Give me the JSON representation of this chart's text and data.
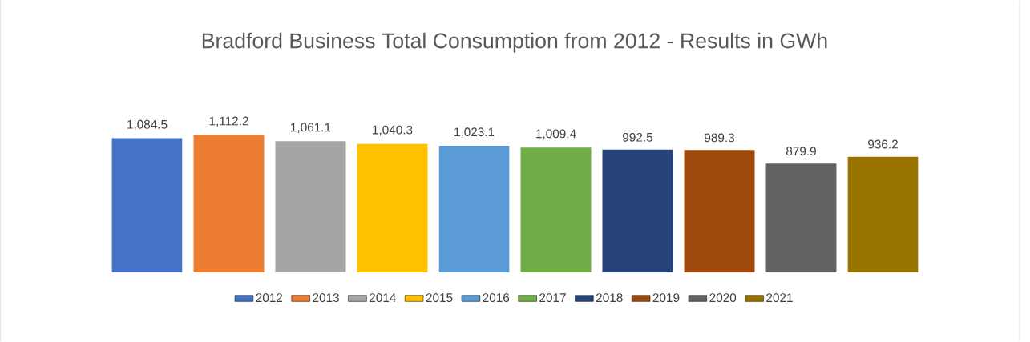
{
  "chart_data": {
    "type": "bar",
    "title": "Bradford Business Total Consumption from 2012 - Results in GWh",
    "categories": [
      null
    ],
    "legend": "bottom",
    "series": [
      {
        "name": "2012",
        "color": "#4472c4",
        "values": [
          1084.5
        ],
        "value_labels": [
          "1,084.5"
        ]
      },
      {
        "name": "2013",
        "color": "#ed7d31",
        "values": [
          1112.2
        ],
        "value_labels": [
          "1,112.2"
        ]
      },
      {
        "name": "2014",
        "color": "#a5a5a5",
        "values": [
          1061.1
        ],
        "value_labels": [
          "1,061.1"
        ]
      },
      {
        "name": "2015",
        "color": "#ffc000",
        "values": [
          1040.3
        ],
        "value_labels": [
          "1,040.3"
        ]
      },
      {
        "name": "2016",
        "color": "#5b9bd5",
        "values": [
          1023.1
        ],
        "value_labels": [
          "1,023.1"
        ]
      },
      {
        "name": "2017",
        "color": "#70ad47",
        "values": [
          1009.4
        ],
        "value_labels": [
          "1,009.4"
        ]
      },
      {
        "name": "2018",
        "color": "#264478",
        "values": [
          992.5
        ],
        "value_labels": [
          "992.5"
        ]
      },
      {
        "name": "2019",
        "color": "#9e480e",
        "values": [
          989.3
        ],
        "value_labels": [
          "989.3"
        ]
      },
      {
        "name": "2020",
        "color": "#636363",
        "values": [
          879.9
        ],
        "value_labels": [
          "879.9"
        ]
      },
      {
        "name": "2021",
        "color": "#997300",
        "values": [
          936.2
        ],
        "value_labels": [
          "936.2"
        ]
      }
    ]
  }
}
